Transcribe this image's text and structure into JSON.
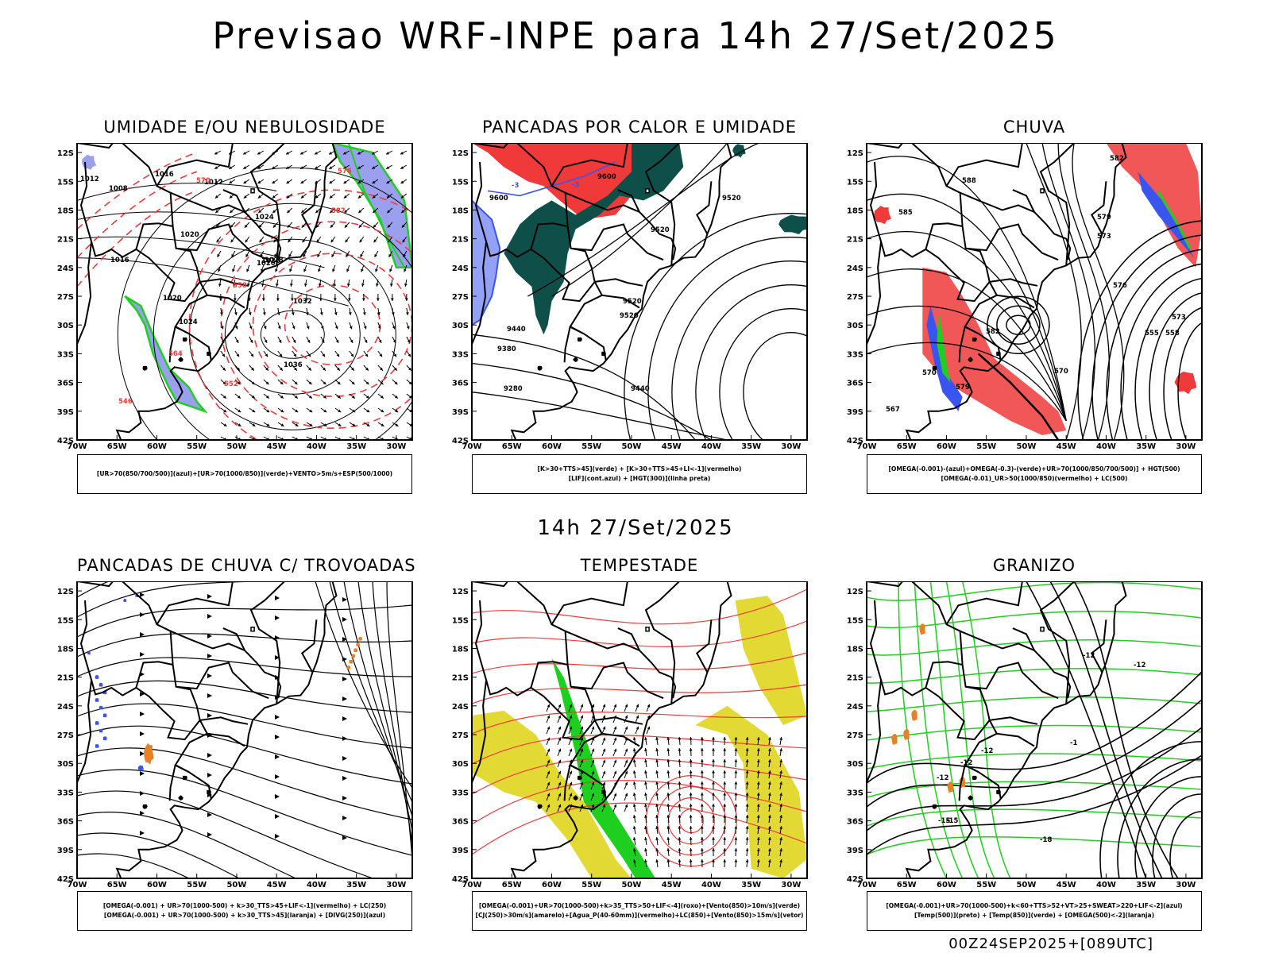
{
  "header": {
    "title": "Previsao WRF-INPE  para 14h 27/Set/2025"
  },
  "middle_label": "14h 27/Set/2025",
  "footer": "00Z24SEP2025+[089UTC]",
  "axes": {
    "lat_labels": [
      "12S",
      "15S",
      "18S",
      "21S",
      "24S",
      "27S",
      "30S",
      "33S",
      "36S",
      "39S",
      "42S"
    ],
    "lon_labels": [
      "70W",
      "65W",
      "60W",
      "55W",
      "50W",
      "45W",
      "40W",
      "35W",
      "30W"
    ]
  },
  "colors": {
    "red": "#f03a3a",
    "green": "#1fcf1f",
    "blue": "#3a54f0",
    "lightblue": "#9aa0ee",
    "teal": "#0f4f4a",
    "yellow": "#e3d935",
    "orange": "#e58228",
    "darkgreen": "#1a8f1a"
  },
  "chart_data": [
    {
      "type": "map-contour",
      "title": "UMIDADE E/OU NEBULOSIDADE",
      "legend": [
        "[UR>70(850/700/500)](azul)+[UR>70(1000/850)](verde)+VENTO>5m/s+ESP(500/1000)"
      ],
      "contour_labels": [
        "1012",
        "1008",
        "1016",
        "1020",
        "1024",
        "1028",
        "1032",
        "1036",
        "1012",
        "1020",
        "1024",
        "1016",
        "1028",
        "1020"
      ],
      "red_labels": [
        "570",
        "576",
        "582",
        "558",
        "546",
        "552",
        "564"
      ]
    },
    {
      "type": "map-contour",
      "title": "PANCADAS POR CALOR E UMIDADE",
      "legend": [
        "[K>30+TTS>45](verde) + [K>30+TTS>45+LI<-1](vermelho)",
        "[LIF](cont.azul) + [HGT(300)](linha preta)"
      ],
      "contour_labels": [
        "9600",
        "9600",
        "9520",
        "9520",
        "9520",
        "9440",
        "9380",
        "9280",
        "9440",
        "9520"
      ],
      "blue_labels": [
        "-3",
        "-3"
      ]
    },
    {
      "type": "map-contour",
      "title": "CHUVA",
      "legend": [
        "[OMEGA(-0.001)-(azul)+OMEGA(-0.3)-(verde)+UR>70(1000/850/700/500)] + HGT(500)",
        "[OMEGA(-0.01)_UR>50(1000/850)(vermelho) + LC(500)"
      ],
      "contour_labels": [
        "582",
        "588",
        "579",
        "573",
        "570",
        "579",
        "573",
        "567",
        "558",
        "555",
        "582",
        "585",
        "576",
        "570"
      ]
    },
    {
      "type": "map-streamline",
      "title": "PANCADAS DE CHUVA C/ TROVOADAS",
      "legend": [
        "[OMEGA(-0.001) + UR>70(1000-500) + k>30_TTS>45+LIF<-1](vermelho) + LC(250)",
        "[OMEGA(-0.001) + UR>70(1000-500) + k>30_TTS>45](laranja) + [DIVG(250)](azul)"
      ]
    },
    {
      "type": "map-streamline",
      "title": "TEMPESTADE",
      "legend": [
        "[OMEGA(-0.001)+UR>70(1000-500)+k>35_TTS>50+LIF<-4](roxo)+[Vento(850)>10m/s](verde)",
        "[CJ(250)>30m/s](amarelo)+[Agua_P(40-60mm)](vermelho)+LC(850)+[Vento(850)>15m/s](vetor)"
      ]
    },
    {
      "type": "map-contour",
      "title": "GRANIZO",
      "legend": [
        "[OMEGA(-0.001)+UR>70(1000-500)+k<60+TTS>52+VT>25+SWEAT>220+LIF<-2](azul)",
        "[Temp(500)](preto) + [Temp(850)](verde) + [OMEGA(500)<-2](laranja)"
      ],
      "contour_labels": [
        "-12",
        "-12",
        "-1",
        "-12",
        "-15",
        "-15",
        "-18",
        "-12",
        "-12"
      ]
    }
  ]
}
